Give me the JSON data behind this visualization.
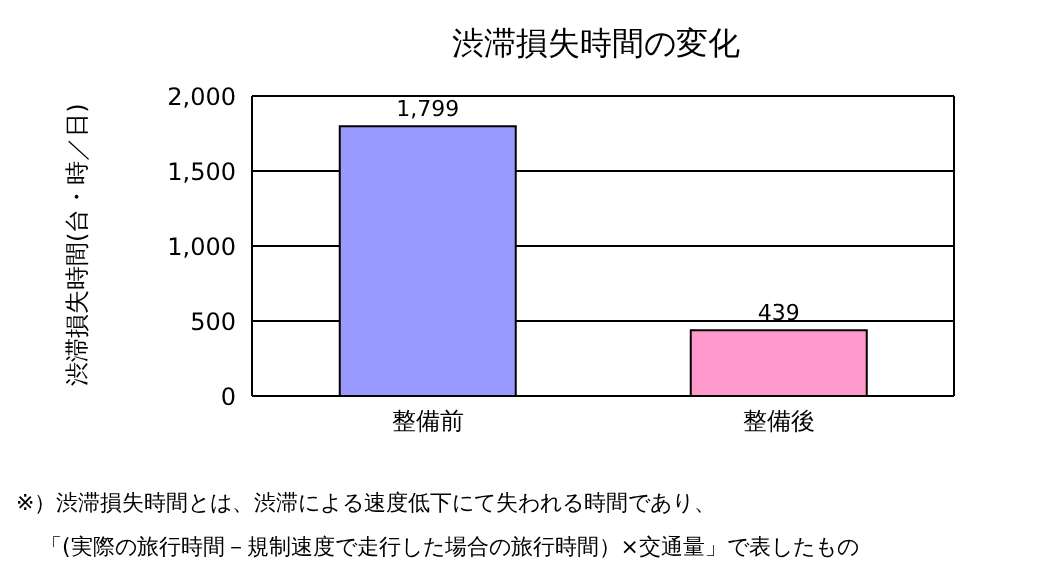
{
  "chart_data": {
    "type": "bar",
    "title": "渋滞損失時間の変化",
    "ylabel": "渋滞損失時間(台・時／日)",
    "categories": [
      "整備前",
      "整備後"
    ],
    "values": [
      1799,
      439
    ],
    "colors": [
      "#9999ff",
      "#ff99cc"
    ],
    "ylim": [
      0,
      2000
    ],
    "yticks": [
      0,
      500,
      {
        "value": 1000,
        "label": "1,000"
      },
      {
        "value": 1500,
        "label": "1,500"
      },
      {
        "value": 2000,
        "label": "2,000"
      }
    ],
    "grid": "y",
    "value_labels": [
      "1,799",
      "439"
    ],
    "annotations": [
      "※）渋滞損失時間とは、渋滞による速度低下にて失われる時間であり、",
      "「(実際の旅行時間－規制速度で走行した場合の旅行時間）×交通量」で表したもの"
    ]
  }
}
